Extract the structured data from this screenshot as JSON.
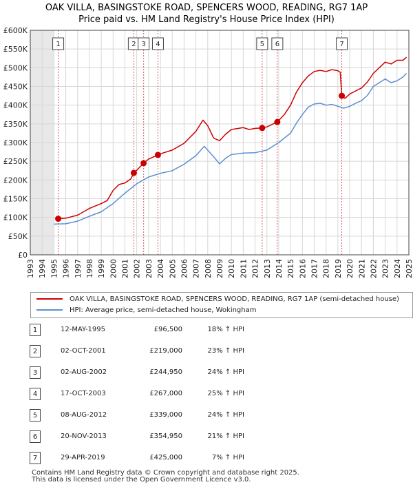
{
  "chart_data": {
    "type": "line",
    "title": "OAK VILLA, BASINGSTOKE ROAD, SPENCERS WOOD, READING, RG7 1AP",
    "subtitle": "Price paid vs. HM Land Registry's House Price Index (HPI)",
    "xlim": [
      1993,
      2025
    ],
    "ylim": [
      0,
      600000
    ],
    "x_ticks": [
      "1993",
      "1994",
      "1995",
      "1996",
      "1997",
      "1998",
      "1999",
      "2000",
      "2001",
      "2002",
      "2003",
      "2004",
      "2005",
      "2006",
      "2007",
      "2008",
      "2009",
      "2010",
      "2011",
      "2012",
      "2013",
      "2014",
      "2015",
      "2016",
      "2017",
      "2018",
      "2019",
      "2020",
      "2021",
      "2022",
      "2023",
      "2024",
      "2025"
    ],
    "y_ticks": [
      {
        "value": 0,
        "label": "£0"
      },
      {
        "value": 50000,
        "label": "£50K"
      },
      {
        "value": 100000,
        "label": "£100K"
      },
      {
        "value": 150000,
        "label": "£150K"
      },
      {
        "value": 200000,
        "label": "£200K"
      },
      {
        "value": 250000,
        "label": "£250K"
      },
      {
        "value": 300000,
        "label": "£300K"
      },
      {
        "value": 350000,
        "label": "£350K"
      },
      {
        "value": 400000,
        "label": "£400K"
      },
      {
        "value": 450000,
        "label": "£450K"
      },
      {
        "value": 500000,
        "label": "£500K"
      },
      {
        "value": 550000,
        "label": "£550K"
      },
      {
        "value": 600000,
        "label": "£600K"
      }
    ],
    "grid": true,
    "data_start": 1995.0,
    "series": [
      {
        "name": "OAK VILLA, BASINGSTOKE ROAD, SPENCERS WOOD, READING, RG7 1AP (semi-detached house)",
        "color": "#cc0000",
        "points": [
          [
            1995.36,
            96500
          ],
          [
            1996.0,
            98000
          ],
          [
            1997.0,
            106000
          ],
          [
            1998.0,
            124000
          ],
          [
            1999.0,
            137000
          ],
          [
            1999.5,
            145000
          ],
          [
            2000.0,
            172000
          ],
          [
            2000.5,
            188000
          ],
          [
            2001.0,
            192000
          ],
          [
            2001.5,
            203000
          ],
          [
            2001.75,
            219000
          ],
          [
            2002.0,
            226000
          ],
          [
            2002.58,
            244950
          ],
          [
            2003.0,
            256000
          ],
          [
            2003.79,
            267000
          ],
          [
            2004.0,
            270000
          ],
          [
            2005.0,
            280000
          ],
          [
            2006.0,
            298000
          ],
          [
            2007.0,
            330000
          ],
          [
            2007.6,
            360000
          ],
          [
            2008.0,
            345000
          ],
          [
            2008.5,
            312000
          ],
          [
            2009.0,
            305000
          ],
          [
            2009.5,
            322000
          ],
          [
            2010.0,
            335000
          ],
          [
            2011.0,
            340000
          ],
          [
            2011.5,
            335000
          ],
          [
            2012.0,
            338000
          ],
          [
            2012.6,
            339000
          ],
          [
            2013.0,
            342000
          ],
          [
            2013.88,
            354950
          ],
          [
            2014.5,
            376000
          ],
          [
            2015.0,
            400000
          ],
          [
            2015.5,
            435000
          ],
          [
            2016.0,
            460000
          ],
          [
            2016.5,
            478000
          ],
          [
            2017.0,
            490000
          ],
          [
            2017.5,
            493000
          ],
          [
            2018.0,
            490000
          ],
          [
            2018.5,
            495000
          ],
          [
            2019.0,
            492000
          ],
          [
            2019.2,
            488000
          ],
          [
            2019.33,
            425000
          ],
          [
            2019.6,
            418000
          ],
          [
            2020.0,
            430000
          ],
          [
            2020.5,
            438000
          ],
          [
            2021.0,
            446000
          ],
          [
            2021.5,
            462000
          ],
          [
            2022.0,
            485000
          ],
          [
            2022.5,
            500000
          ],
          [
            2023.0,
            515000
          ],
          [
            2023.5,
            510000
          ],
          [
            2024.0,
            520000
          ],
          [
            2024.5,
            520000
          ],
          [
            2024.8,
            528000
          ]
        ]
      },
      {
        "name": "HPI: Average price, semi-detached house, Wokingham",
        "color": "#5b8fd0",
        "points": [
          [
            1995.0,
            82000
          ],
          [
            1996.0,
            83000
          ],
          [
            1997.0,
            90000
          ],
          [
            1998.0,
            103000
          ],
          [
            1999.0,
            115000
          ],
          [
            2000.0,
            137000
          ],
          [
            2001.0,
            165000
          ],
          [
            2002.0,
            190000
          ],
          [
            2003.0,
            208000
          ],
          [
            2004.0,
            218000
          ],
          [
            2005.0,
            225000
          ],
          [
            2006.0,
            242000
          ],
          [
            2007.0,
            265000
          ],
          [
            2007.7,
            290000
          ],
          [
            2008.5,
            262000
          ],
          [
            2009.0,
            243000
          ],
          [
            2009.5,
            258000
          ],
          [
            2010.0,
            268000
          ],
          [
            2011.0,
            272000
          ],
          [
            2012.0,
            273000
          ],
          [
            2013.0,
            280000
          ],
          [
            2014.0,
            300000
          ],
          [
            2015.0,
            325000
          ],
          [
            2015.5,
            352000
          ],
          [
            2016.0,
            375000
          ],
          [
            2016.5,
            395000
          ],
          [
            2017.0,
            403000
          ],
          [
            2017.5,
            405000
          ],
          [
            2018.0,
            400000
          ],
          [
            2018.5,
            402000
          ],
          [
            2019.0,
            397000
          ],
          [
            2019.5,
            392000
          ],
          [
            2020.0,
            397000
          ],
          [
            2020.5,
            405000
          ],
          [
            2021.0,
            412000
          ],
          [
            2021.5,
            426000
          ],
          [
            2022.0,
            450000
          ],
          [
            2022.5,
            460000
          ],
          [
            2023.0,
            470000
          ],
          [
            2023.5,
            460000
          ],
          [
            2024.0,
            465000
          ],
          [
            2024.5,
            475000
          ],
          [
            2024.8,
            485000
          ]
        ]
      }
    ],
    "events": [
      {
        "n": "1",
        "x": 1995.36,
        "y": 96500
      },
      {
        "n": "2",
        "x": 2001.75,
        "y": 219000
      },
      {
        "n": "3",
        "x": 2002.58,
        "y": 244950
      },
      {
        "n": "4",
        "x": 2003.79,
        "y": 267000
      },
      {
        "n": "5",
        "x": 2012.6,
        "y": 339000
      },
      {
        "n": "6",
        "x": 2013.88,
        "y": 354950
      },
      {
        "n": "7",
        "x": 2019.33,
        "y": 425000
      }
    ]
  },
  "legend": [
    {
      "label": "OAK VILLA, BASINGSTOKE ROAD, SPENCERS WOOD, READING, RG7 1AP (semi-detached house)",
      "color": "#cc0000"
    },
    {
      "label": "HPI: Average price, semi-detached house, Wokingham",
      "color": "#5b8fd0"
    }
  ],
  "sales": [
    {
      "n": "1",
      "date": "12-MAY-1995",
      "price": "£96,500",
      "hpi": "18% ↑ HPI"
    },
    {
      "n": "2",
      "date": "02-OCT-2001",
      "price": "£219,000",
      "hpi": "23% ↑ HPI"
    },
    {
      "n": "3",
      "date": "02-AUG-2002",
      "price": "£244,950",
      "hpi": "24% ↑ HPI"
    },
    {
      "n": "4",
      "date": "17-OCT-2003",
      "price": "£267,000",
      "hpi": "25% ↑ HPI"
    },
    {
      "n": "5",
      "date": "08-AUG-2012",
      "price": "£339,000",
      "hpi": "24% ↑ HPI"
    },
    {
      "n": "6",
      "date": "20-NOV-2013",
      "price": "£354,950",
      "hpi": "21% ↑ HPI"
    },
    {
      "n": "7",
      "date": "29-APR-2019",
      "price": "£425,000",
      "hpi": "7% ↑ HPI"
    }
  ],
  "footer": {
    "line1": "Contains HM Land Registry data © Crown copyright and database right 2025.",
    "line2": "This data is licensed under the Open Government Licence v3.0."
  }
}
